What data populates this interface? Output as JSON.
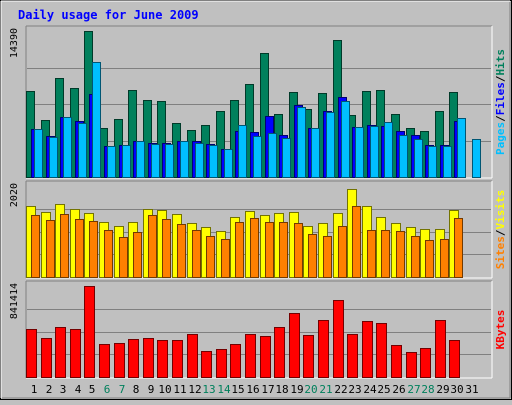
{
  "chart_data": {
    "type": "bar",
    "title": "Daily usage for June 2009",
    "categories": [
      "1",
      "2",
      "3",
      "4",
      "5",
      "6",
      "7",
      "8",
      "9",
      "10",
      "11",
      "12",
      "13",
      "14",
      "15",
      "16",
      "17",
      "18",
      "19",
      "20",
      "21",
      "22",
      "23",
      "24",
      "25",
      "26",
      "27",
      "28",
      "29",
      "30",
      "31"
    ],
    "weekend_days": [
      "6",
      "7",
      "13",
      "14",
      "20",
      "21",
      "27",
      "28"
    ],
    "panels": [
      {
        "id": "top",
        "ymax_label": "14390",
        "ymax": 14390,
        "right_label": [
          "Pages",
          "/",
          "Files",
          "/",
          "Hits"
        ],
        "series": [
          {
            "name": "Hits",
            "color": "#00805c",
            "values": [
              8450,
              5600,
              9750,
              8750,
              14390,
              4800,
              5700,
              8600,
              7600,
              7500,
              5300,
              4600,
              5100,
              6500,
              7600,
              9200,
              12200,
              6200,
              8400,
              6700,
              8300,
              13500,
              6100,
              8500,
              8600,
              6200,
              4800,
              4500,
              6500,
              8400,
              null
            ]
          },
          {
            "name": "Files",
            "color": "#0000ff",
            "values": [
              4700,
              4000,
              5900,
              5500,
              8200,
              3100,
              3200,
              3500,
              3400,
              3400,
              3500,
              3500,
              3300,
              2800,
              4500,
              4400,
              6000,
              4100,
              7100,
              4800,
              6500,
              7900,
              4900,
              5100,
              5000,
              4500,
              4100,
              3200,
              3200,
              5500,
              null
            ]
          },
          {
            "name": "Pages",
            "color": "#00bfff",
            "values": [
              4700,
              3900,
              5900,
              5300,
              11300,
              3100,
              3200,
              3500,
              3300,
              3300,
              3500,
              3400,
              3200,
              2800,
              5100,
              4000,
              4300,
              3800,
              6900,
              4800,
              6400,
              7500,
              4900,
              5000,
              5400,
              4100,
              3700,
              3100,
              3100,
              5800,
              3700
            ]
          }
        ]
      },
      {
        "id": "mid",
        "ymax_label": "2020",
        "ymax": 2020,
        "right_label": [
          "Sites",
          "/",
          "Visits"
        ],
        "series": [
          {
            "name": "Visits",
            "color": "#ffff00",
            "values": [
              1580,
              1450,
              1620,
              1520,
              1410,
              1220,
              1140,
              1230,
              1500,
              1490,
              1390,
              1190,
              1100,
              1010,
              1340,
              1460,
              1380,
              1430,
              1450,
              1140,
              1190,
              1410,
              1960,
              1580,
              1330,
              1200,
              1120,
              1060,
              1070,
              1490,
              null
            ]
          },
          {
            "name": "Sites",
            "color": "#ff8000",
            "values": [
              1370,
              1270,
              1400,
              1280,
              1250,
              1040,
              890,
              1000,
              1380,
              1280,
              1180,
              1040,
              910,
              850,
              1220,
              1300,
              1220,
              1210,
              1190,
              950,
              920,
              1140,
              1580,
              1050,
              1050,
              1010,
              900,
              820,
              850,
              1310,
              null
            ]
          }
        ]
      },
      {
        "id": "bot",
        "ymax_label": "841414",
        "ymax": 841414,
        "right_label": [
          "KBytes"
        ],
        "series": [
          {
            "name": "KBytes",
            "color": "#ff0000",
            "values": [
              445000,
              365000,
              460000,
              440000,
              841414,
              305000,
              310000,
              355000,
              360000,
              345000,
              340000,
              395000,
              245000,
              255000,
              305000,
              400000,
              380000,
              460000,
              590000,
              390000,
              530000,
              715000,
              395000,
              520000,
              495000,
              295000,
              235000,
              265000,
              525000,
              345000,
              null
            ]
          }
        ]
      }
    ]
  }
}
